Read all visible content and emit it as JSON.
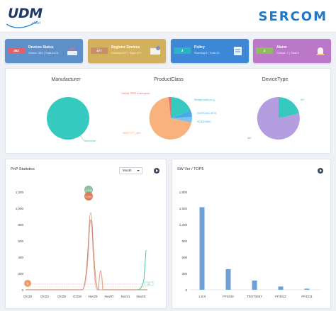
{
  "header": {
    "logo_text": "UDM",
    "logo_sub": "cloud",
    "brand": "SERCOM"
  },
  "cards": [
    {
      "badge": "452",
      "title": "Devices Status",
      "sub": "Online: 452 | Total:2178",
      "color": "#5d8fc9",
      "badge_color": "#e2606a",
      "icon": "router-icon"
    },
    {
      "badge": "477",
      "title": "Register Devices",
      "sub": "Devices:477 | Total: 477",
      "color": "#d3b15c",
      "badge_color": "#c98e68",
      "icon": "register-icon"
    },
    {
      "badge": "3",
      "title": "Policy",
      "sub": "Running:3 | Total:10",
      "color": "#3c88d6",
      "badge_color": "#2ab4c2",
      "icon": "policy-icon"
    },
    {
      "badge": "2",
      "title": "Alarm",
      "sub": "Critical: 1 | Total:8",
      "color": "#bb78c9",
      "badge_color": "#8ebd5a",
      "icon": "alarm-icon"
    }
  ],
  "pies": {
    "manufacturer": {
      "title": "Manufacturer",
      "labels": [
        "Sercomm"
      ]
    },
    "product_class": {
      "title": "ProductClass",
      "labels": [
        "VieNA TEDI Enterprise",
        "Bridgeoutdoor-g...",
        "SCES16C-B78",
        "SCE4950C",
        "SCE7777_AH..."
      ]
    },
    "device_type": {
      "title": "DeviceType",
      "labels": [
        "5G",
        "4G"
      ]
    }
  },
  "pnp": {
    "title": "PnP Statistics",
    "period": "Month",
    "y_ticks": [
      "1,200",
      "1,000",
      "800",
      "600",
      "400",
      "200",
      "0"
    ],
    "x_ticks": [
      "Oct18",
      "Oct22",
      "Oct26",
      "Oct30",
      "Nov03",
      "Nov07",
      "Nov11",
      "Nov15"
    ],
    "markers": [
      "1,104",
      "1,051",
      "0"
    ],
    "end_label": "22"
  },
  "sw": {
    "title": "SW Ver / TOP5",
    "y_ticks": [
      "1,800",
      "1,500",
      "1,200",
      "900",
      "600",
      "300",
      "0"
    ],
    "categories": [
      "1.0.0",
      "FF4310",
      "TEST3447",
      "FF4312",
      "FF4311"
    ],
    "values": [
      1520,
      380,
      170,
      60,
      20
    ],
    "bar_color": "#6e9fd6"
  }
}
